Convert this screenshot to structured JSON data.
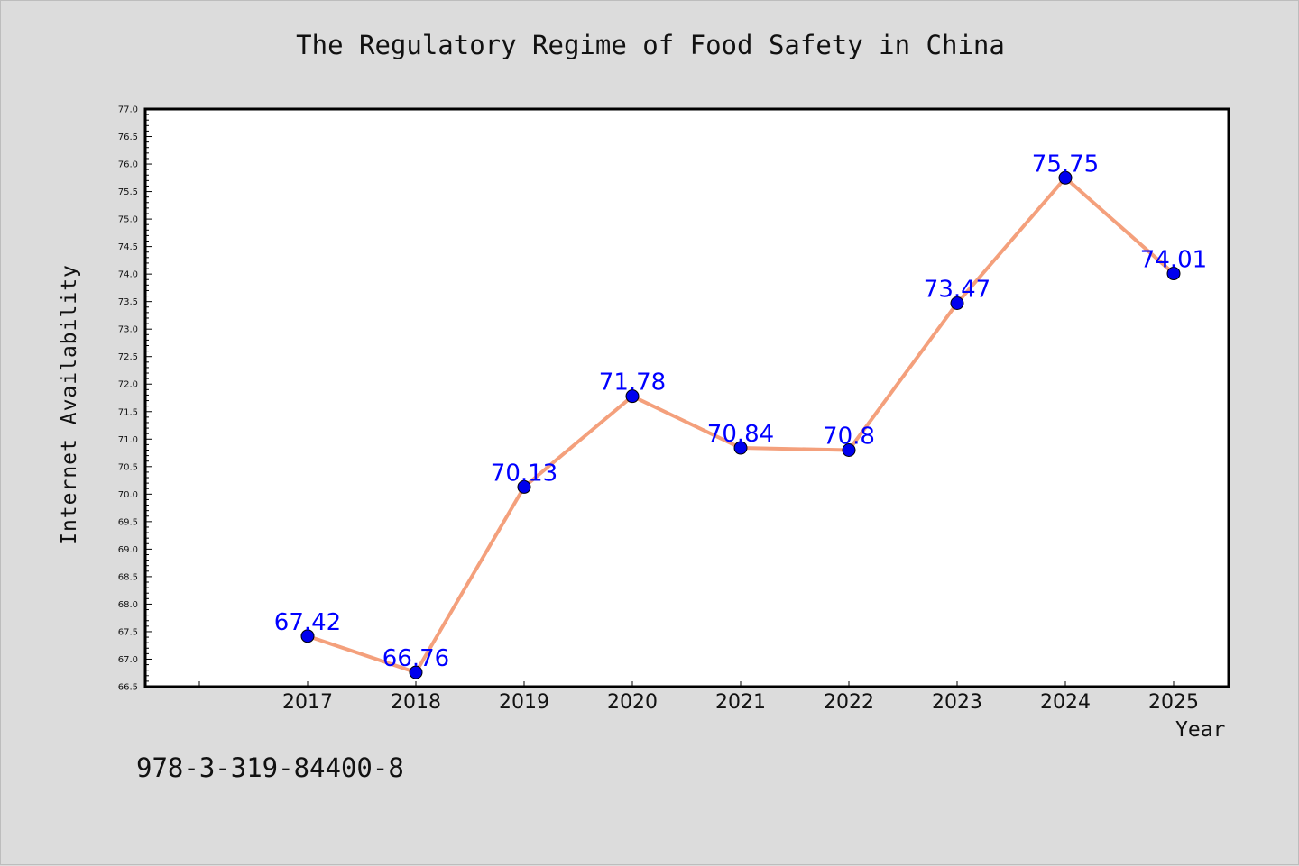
{
  "isbn": "978-3-319-84400-8",
  "colors": {
    "background": "#dcdcdc",
    "plot_background": "#ffffff",
    "line": "#f4a07c",
    "marker": "#0000ee",
    "data_label": "#0000ff"
  },
  "chart_data": {
    "type": "line",
    "title": "The Regulatory Regime of Food Safety in China",
    "xlabel": "Year",
    "ylabel": "Internet Availability",
    "categories": [
      "2017",
      "2018",
      "2019",
      "2020",
      "2021",
      "2022",
      "2023",
      "2024",
      "2025"
    ],
    "series": [
      {
        "values": [
          67.42,
          66.76,
          70.13,
          71.78,
          70.84,
          70.8,
          73.47,
          75.75,
          74.01
        ],
        "labels": [
          "67.42",
          "66.76",
          "70.13",
          "71.78",
          "70.84",
          "70.8",
          "73.47",
          "75.75",
          "74.01"
        ]
      }
    ],
    "ylim": [
      66.5,
      77.0
    ],
    "yticks": [
      "66.5",
      "67.0",
      "67.5",
      "68.0",
      "68.5",
      "69.0",
      "69.5",
      "70.0",
      "70.5",
      "71.0",
      "71.5",
      "72.0",
      "72.5",
      "73.0",
      "73.5",
      "74.0",
      "74.5",
      "75.0",
      "75.5",
      "76.0",
      "76.5",
      "77.0"
    ],
    "grid": false,
    "legend": "none"
  }
}
